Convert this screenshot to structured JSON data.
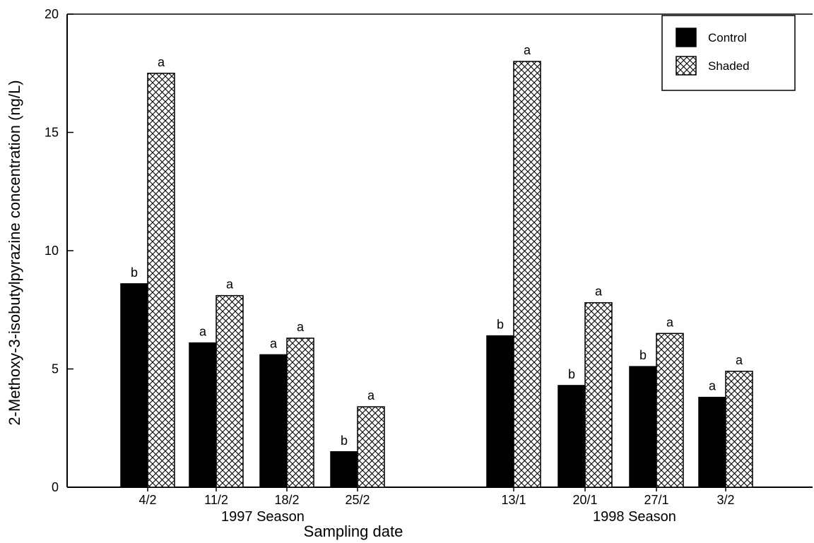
{
  "chart_data": {
    "type": "bar",
    "xlabel": "Sampling date",
    "ylabel": "2-Methoxy-3-isobutylpyrazine concentration (ng/L)",
    "ylim": [
      0,
      20
    ],
    "yticks": [
      0,
      5,
      10,
      15,
      20
    ],
    "grid": false,
    "legend_position": "top-right",
    "groups": [
      {
        "label": "1997 Season",
        "categories": [
          "4/2",
          "11/2",
          "18/2",
          "25/2"
        ]
      },
      {
        "label": "1998 Season",
        "categories": [
          "13/1",
          "20/1",
          "27/1",
          "3/2"
        ]
      }
    ],
    "categories": [
      "4/2",
      "11/2",
      "18/2",
      "25/2",
      "13/1",
      "20/1",
      "27/1",
      "3/2"
    ],
    "series": [
      {
        "name": "Control",
        "fill": "solid-black",
        "color": "#000000",
        "values": [
          8.6,
          6.1,
          5.6,
          1.5,
          6.4,
          4.3,
          5.1,
          3.8
        ],
        "significance": [
          "b",
          "a",
          "a",
          "b",
          "b",
          "b",
          "b",
          "a"
        ]
      },
      {
        "name": "Shaded",
        "fill": "crosshatch",
        "color": "#000000",
        "values": [
          17.5,
          8.1,
          6.3,
          3.4,
          18.0,
          7.8,
          6.5,
          4.9
        ],
        "significance": [
          "a",
          "a",
          "a",
          "a",
          "a",
          "a",
          "a",
          "a"
        ]
      }
    ]
  }
}
